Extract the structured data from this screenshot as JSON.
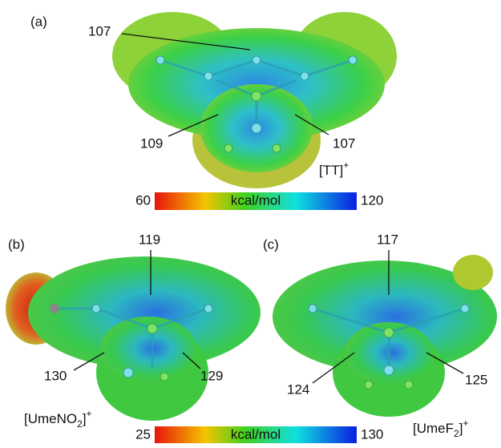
{
  "panels": [
    {
      "label": "(a)",
      "species": {
        "text": "[TT]",
        "sup": "+"
      },
      "values": [
        107,
        109,
        107
      ]
    },
    {
      "label": "(b)",
      "species": {
        "text": "[UmeNO",
        "sub": "2",
        "close": "]",
        "sup": "+"
      },
      "values": [
        119,
        130,
        129
      ]
    },
    {
      "label": "(c)",
      "species": {
        "text": "[UmeF",
        "sub": "2",
        "close": "]",
        "sup": "+"
      },
      "values": [
        117,
        124,
        125
      ]
    }
  ],
  "colorbars": [
    {
      "min": 60,
      "unit": "kcal/mol",
      "max": 120
    },
    {
      "min": 25,
      "unit": "kcal/mol",
      "max": 130
    }
  ]
}
